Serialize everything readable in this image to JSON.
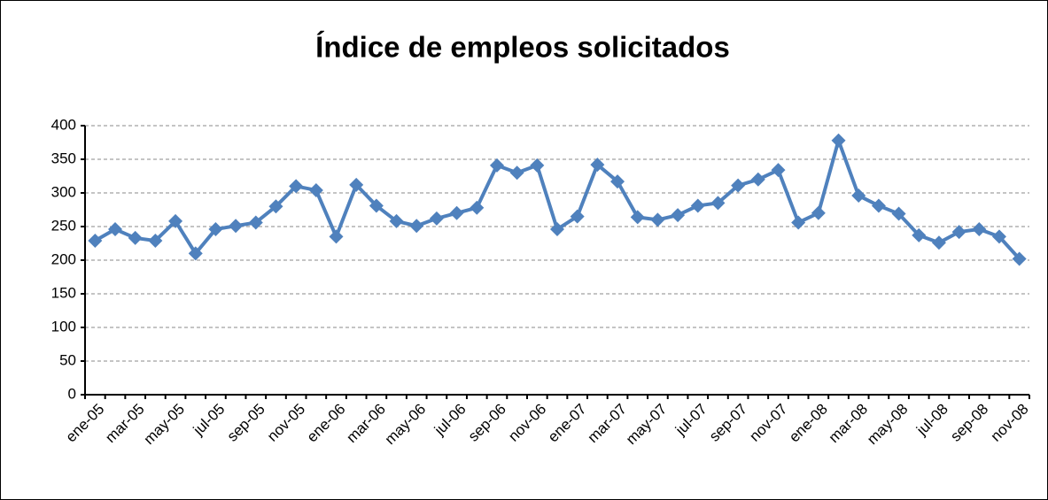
{
  "chart_data": {
    "type": "line",
    "title": "Índice de empleos solicitados",
    "categories": [
      "ene-05",
      null,
      "mar-05",
      null,
      "may-05",
      null,
      "jul-05",
      null,
      "sep-05",
      null,
      "nov-05",
      null,
      "ene-06",
      null,
      "mar-06",
      null,
      "may-06",
      null,
      "jul-06",
      null,
      "sep-06",
      null,
      "nov-06",
      null,
      "ene-07",
      null,
      "mar-07",
      null,
      "may-07",
      null,
      "jul-07",
      null,
      "sep-07",
      null,
      "nov-07",
      null,
      "ene-08",
      null,
      "mar-08",
      null,
      "may-08",
      null,
      "jul-08",
      null,
      "sep-08",
      null,
      "nov-08"
    ],
    "values": [
      229,
      246,
      233,
      229,
      258,
      210,
      246,
      251,
      256,
      280,
      310,
      304,
      235,
      312,
      281,
      258,
      251,
      262,
      270,
      278,
      341,
      330,
      341,
      246,
      265,
      342,
      317,
      264,
      260,
      267,
      281,
      285,
      311,
      320,
      334,
      256,
      270,
      378,
      296,
      281,
      269,
      237,
      226,
      242,
      246,
      235,
      202
    ],
    "color": "#4f81bd",
    "ylim": [
      0,
      400
    ],
    "yticks": [
      0,
      50,
      100,
      150,
      200,
      250,
      300,
      350,
      400
    ],
    "grid": true
  }
}
